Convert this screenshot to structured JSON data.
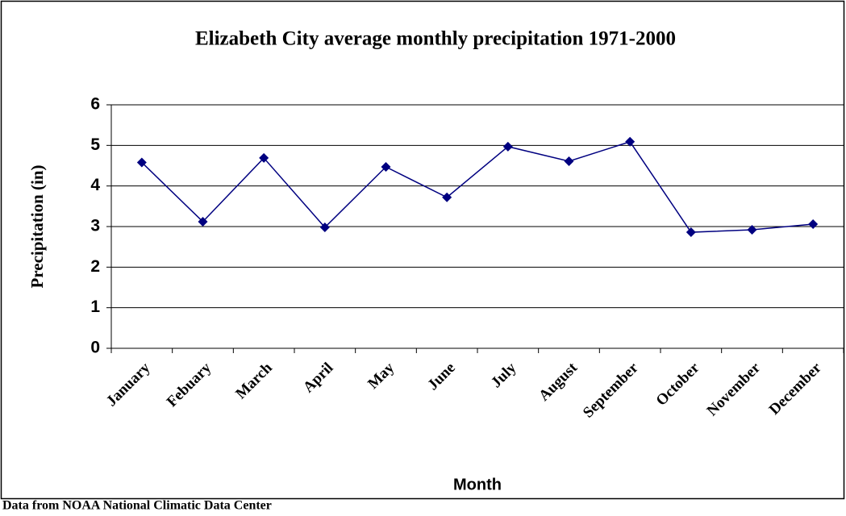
{
  "chart_data": {
    "type": "line",
    "title": "Elizabeth City average monthly precipitation 1971-2000",
    "x_label": "Month",
    "y_label": "Precipitation (in)",
    "source": "Data from NOAA National Climatic Data Center",
    "categories": [
      "January",
      "Febuary",
      "March",
      "April",
      "May",
      "June",
      "July",
      "August",
      "September",
      "October",
      "November",
      "December"
    ],
    "values": [
      4.58,
      3.12,
      4.69,
      2.98,
      4.47,
      3.72,
      4.97,
      4.61,
      5.09,
      2.86,
      2.92,
      3.06
    ],
    "color": "#000080",
    "ylim": [
      0,
      6
    ],
    "yticks": [
      0,
      1,
      2,
      3,
      4,
      5,
      6
    ],
    "grid": true
  }
}
